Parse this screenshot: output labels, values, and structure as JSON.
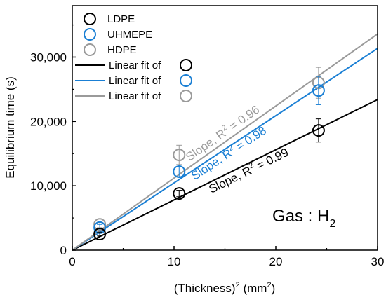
{
  "chart_data": {
    "type": "scatter",
    "xlabel": "(Thickness)",
    "xlabel_sup": "2",
    "xlabel_unit": " (mm",
    "xlabel_unit_sup": "2",
    "xlabel_close": ")",
    "ylabel": "Equilibrium time (s)",
    "xlim": [
      0,
      30
    ],
    "ylim": [
      0,
      38000
    ],
    "xticks": [
      0,
      10,
      20,
      30
    ],
    "xtick_labels": [
      "0",
      "10",
      "20",
      "30"
    ],
    "yticks": [
      0,
      10000,
      20000,
      30000
    ],
    "ytick_labels": [
      "0",
      "10,000",
      "20,000",
      "30,000"
    ],
    "grid": false,
    "legend_position": "top-left",
    "series": [
      {
        "name": "LDPE",
        "color": "#000000",
        "x": [
          2.7,
          10.5,
          24.2
        ],
        "y": [
          2500,
          8800,
          18600
        ],
        "err": [
          300,
          500,
          1800
        ]
      },
      {
        "name": "UHMEPE",
        "color": "#1a7fd4",
        "x": [
          2.7,
          10.5,
          24.2
        ],
        "y": [
          3500,
          12200,
          24800
        ],
        "err": [
          500,
          800,
          2200
        ]
      },
      {
        "name": "HDPE",
        "color": "#9a9a9a",
        "x": [
          2.7,
          10.5,
          24.2
        ],
        "y": [
          4000,
          14800,
          26000
        ],
        "err": [
          500,
          1500,
          2400
        ]
      }
    ],
    "fits": [
      {
        "legend": "Linear fit of",
        "color": "#000000",
        "slope": 780
      },
      {
        "legend": "Linear fit of",
        "color": "#1a7fd4",
        "slope": 1045
      },
      {
        "legend": "Linear fit of",
        "color": "#9a9a9a",
        "slope": 1120
      }
    ],
    "annotations": [
      {
        "text": "Slope, R",
        "sup": "2",
        "rest": " = 0.99",
        "color": "#000000"
      },
      {
        "text": "Slope, R",
        "sup": "2",
        "rest": " = 0.98",
        "color": "#1a7fd4"
      },
      {
        "text": "Slope, R",
        "sup": "2",
        "rest": " = 0.96",
        "color": "#9a9a9a"
      }
    ],
    "gas_label": {
      "text": "Gas : H",
      "sub": "2"
    }
  }
}
